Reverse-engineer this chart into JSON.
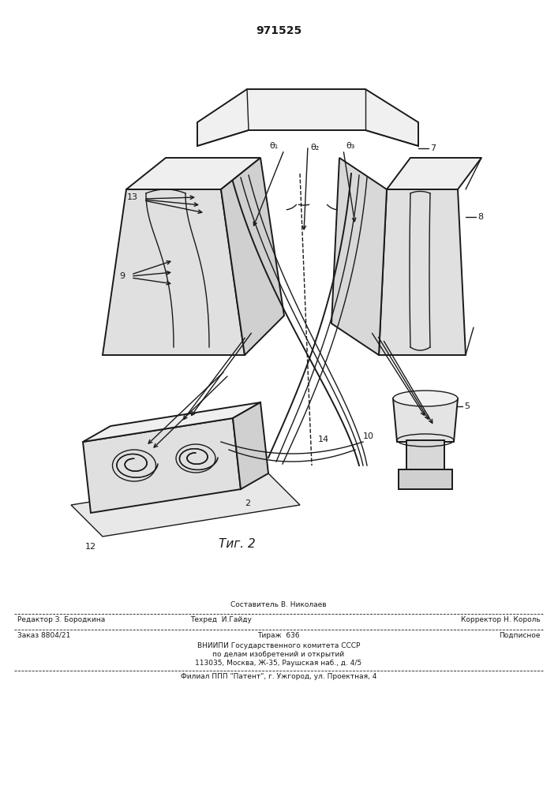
{
  "patent_number": "971525",
  "fig_label": "Τиг. 2",
  "bg_color": "#ffffff",
  "line_color": "#1a1a1a",
  "title_fontsize": 11,
  "fig_label_fontsize": 11,
  "footer": {
    "col0_line1": "Составитель В. Николаев",
    "col1_line1": "Редактор З. Бородкина",
    "col2_line1": "Техред  И.Гайду",
    "col3_line1": "Корректор Н. Король",
    "col1_line2": "Заказ 8804/21",
    "col2_line2": "Тираж  636",
    "col3_line2": "Подписное",
    "vniipi_line1": "ВНИИПИ Государственного комитета СССР",
    "vniipi_line2": "по делам изобретений и открытий",
    "vniipi_line3": "113035, Москва, Ж-35, Раушская наб., д. 4/5",
    "filial": "Филиал ППП \"Патент\", г. Ужгород, ул. Проектная, 4"
  }
}
